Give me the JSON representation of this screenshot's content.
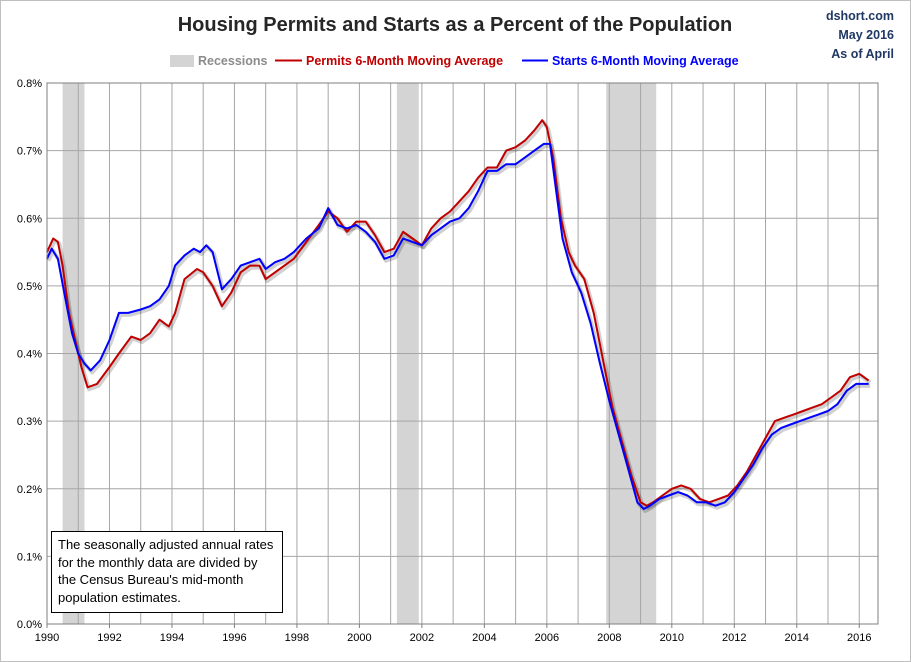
{
  "chart_data": {
    "type": "line",
    "title": "Housing Permits and Starts as a Percent of the Population",
    "credit": [
      "dshort.com",
      "May 2016",
      "As of April"
    ],
    "legend_placement": "top-center",
    "legend": {
      "recessions": "Recessions",
      "permits": "Permits 6-Month Moving Average",
      "starts": "Starts 6-Month Moving Average"
    },
    "note": "The seasonally adjusted annual rates for the monthly data are divided by the Census Bureau's mid-month population estimates.",
    "x_range": [
      1990.0,
      2016.6
    ],
    "ylim": [
      0.0,
      0.8
    ],
    "y_ticks": [
      "0.0%",
      "0.1%",
      "0.2%",
      "0.3%",
      "0.4%",
      "0.5%",
      "0.6%",
      "0.7%",
      "0.8%"
    ],
    "x_ticks": [
      "1990",
      "1992",
      "1994",
      "1996",
      "1998",
      "2000",
      "2002",
      "2004",
      "2006",
      "2008",
      "2010",
      "2012",
      "2014",
      "2016"
    ],
    "grid": true,
    "colors": {
      "permits": "#c00000",
      "starts": "#0000ff",
      "recession": "#d4d4d4",
      "grid": "#a6a6a6"
    },
    "recessions": [
      [
        1990.5,
        1991.2
      ],
      [
        2001.2,
        2001.9
      ],
      [
        2007.9,
        2009.5
      ]
    ],
    "series": [
      {
        "name": "Permits 6-Month Moving Average",
        "key": "permits",
        "x": [
          1990.0,
          1990.2,
          1990.35,
          1990.5,
          1990.7,
          1990.9,
          1991.1,
          1991.3,
          1991.6,
          1992.0,
          1992.3,
          1992.7,
          1993.0,
          1993.3,
          1993.6,
          1993.9,
          1994.1,
          1994.4,
          1994.8,
          1995.0,
          1995.3,
          1995.6,
          1995.9,
          1996.2,
          1996.5,
          1996.8,
          1997.0,
          1997.3,
          1997.6,
          1997.9,
          1998.3,
          1998.7,
          1999.0,
          1999.3,
          1999.6,
          1999.9,
          2000.2,
          2000.5,
          2000.8,
          2001.1,
          2001.4,
          2001.7,
          2002.0,
          2002.3,
          2002.6,
          2002.9,
          2003.2,
          2003.5,
          2003.8,
          2004.1,
          2004.4,
          2004.7,
          2005.0,
          2005.3,
          2005.6,
          2005.85,
          2006.0,
          2006.2,
          2006.45,
          2006.7,
          2006.9,
          2007.2,
          2007.5,
          2007.8,
          2008.1,
          2008.4,
          2008.7,
          2009.0,
          2009.2,
          2009.4,
          2009.7,
          2010.0,
          2010.3,
          2010.6,
          2010.9,
          2011.2,
          2011.5,
          2011.8,
          2012.1,
          2012.4,
          2012.7,
          2013.0,
          2013.3,
          2013.6,
          2013.9,
          2014.2,
          2014.5,
          2014.8,
          2015.1,
          2015.4,
          2015.7,
          2016.0,
          2016.3
        ],
        "values": [
          0.55,
          0.57,
          0.565,
          0.53,
          0.46,
          0.42,
          0.38,
          0.35,
          0.355,
          0.38,
          0.4,
          0.425,
          0.42,
          0.43,
          0.45,
          0.44,
          0.46,
          0.51,
          0.525,
          0.52,
          0.5,
          0.47,
          0.49,
          0.52,
          0.53,
          0.53,
          0.51,
          0.52,
          0.53,
          0.54,
          0.565,
          0.59,
          0.61,
          0.6,
          0.58,
          0.595,
          0.595,
          0.575,
          0.55,
          0.555,
          0.58,
          0.57,
          0.56,
          0.585,
          0.6,
          0.61,
          0.625,
          0.64,
          0.66,
          0.675,
          0.675,
          0.7,
          0.705,
          0.715,
          0.73,
          0.745,
          0.735,
          0.69,
          0.6,
          0.55,
          0.53,
          0.51,
          0.46,
          0.39,
          0.32,
          0.27,
          0.22,
          0.18,
          0.175,
          0.18,
          0.19,
          0.2,
          0.205,
          0.2,
          0.185,
          0.18,
          0.185,
          0.19,
          0.205,
          0.225,
          0.25,
          0.275,
          0.3,
          0.305,
          0.31,
          0.315,
          0.32,
          0.325,
          0.335,
          0.345,
          0.365,
          0.37,
          0.36
        ]
      },
      {
        "name": "Starts 6-Month Moving Average",
        "key": "starts",
        "x": [
          1990.0,
          1990.15,
          1990.35,
          1990.55,
          1990.8,
          1991.0,
          1991.2,
          1991.4,
          1991.7,
          1992.0,
          1992.3,
          1992.6,
          1993.0,
          1993.3,
          1993.6,
          1993.9,
          1994.1,
          1994.4,
          1994.7,
          1994.9,
          1995.1,
          1995.3,
          1995.6,
          1995.9,
          1996.2,
          1996.5,
          1996.8,
          1997.0,
          1997.3,
          1997.6,
          1997.9,
          1998.3,
          1998.7,
          1999.0,
          1999.3,
          1999.6,
          1999.9,
          2000.2,
          2000.5,
          2000.8,
          2001.1,
          2001.4,
          2001.7,
          2002.0,
          2002.3,
          2002.6,
          2002.9,
          2003.2,
          2003.5,
          2003.8,
          2004.1,
          2004.4,
          2004.7,
          2005.0,
          2005.3,
          2005.6,
          2005.9,
          2006.1,
          2006.3,
          2006.5,
          2006.8,
          2007.1,
          2007.4,
          2007.7,
          2008.0,
          2008.3,
          2008.6,
          2008.9,
          2009.1,
          2009.3,
          2009.6,
          2009.9,
          2010.2,
          2010.5,
          2010.8,
          2011.1,
          2011.4,
          2011.7,
          2012.0,
          2012.3,
          2012.6,
          2012.9,
          2013.2,
          2013.5,
          2013.8,
          2014.1,
          2014.4,
          2014.7,
          2015.0,
          2015.3,
          2015.6,
          2015.9,
          2016.1,
          2016.3
        ],
        "values": [
          0.54,
          0.555,
          0.54,
          0.49,
          0.43,
          0.4,
          0.385,
          0.375,
          0.39,
          0.42,
          0.46,
          0.46,
          0.465,
          0.47,
          0.48,
          0.5,
          0.53,
          0.545,
          0.555,
          0.55,
          0.56,
          0.55,
          0.495,
          0.51,
          0.53,
          0.535,
          0.54,
          0.525,
          0.535,
          0.54,
          0.55,
          0.57,
          0.585,
          0.615,
          0.59,
          0.585,
          0.59,
          0.58,
          0.565,
          0.54,
          0.545,
          0.57,
          0.565,
          0.56,
          0.575,
          0.585,
          0.595,
          0.6,
          0.615,
          0.64,
          0.67,
          0.67,
          0.68,
          0.68,
          0.69,
          0.7,
          0.71,
          0.71,
          0.64,
          0.57,
          0.52,
          0.49,
          0.445,
          0.385,
          0.33,
          0.28,
          0.23,
          0.18,
          0.17,
          0.175,
          0.185,
          0.19,
          0.195,
          0.19,
          0.18,
          0.18,
          0.175,
          0.18,
          0.195,
          0.215,
          0.235,
          0.26,
          0.28,
          0.29,
          0.295,
          0.3,
          0.305,
          0.31,
          0.315,
          0.325,
          0.345,
          0.355,
          0.355,
          0.355
        ]
      }
    ]
  }
}
